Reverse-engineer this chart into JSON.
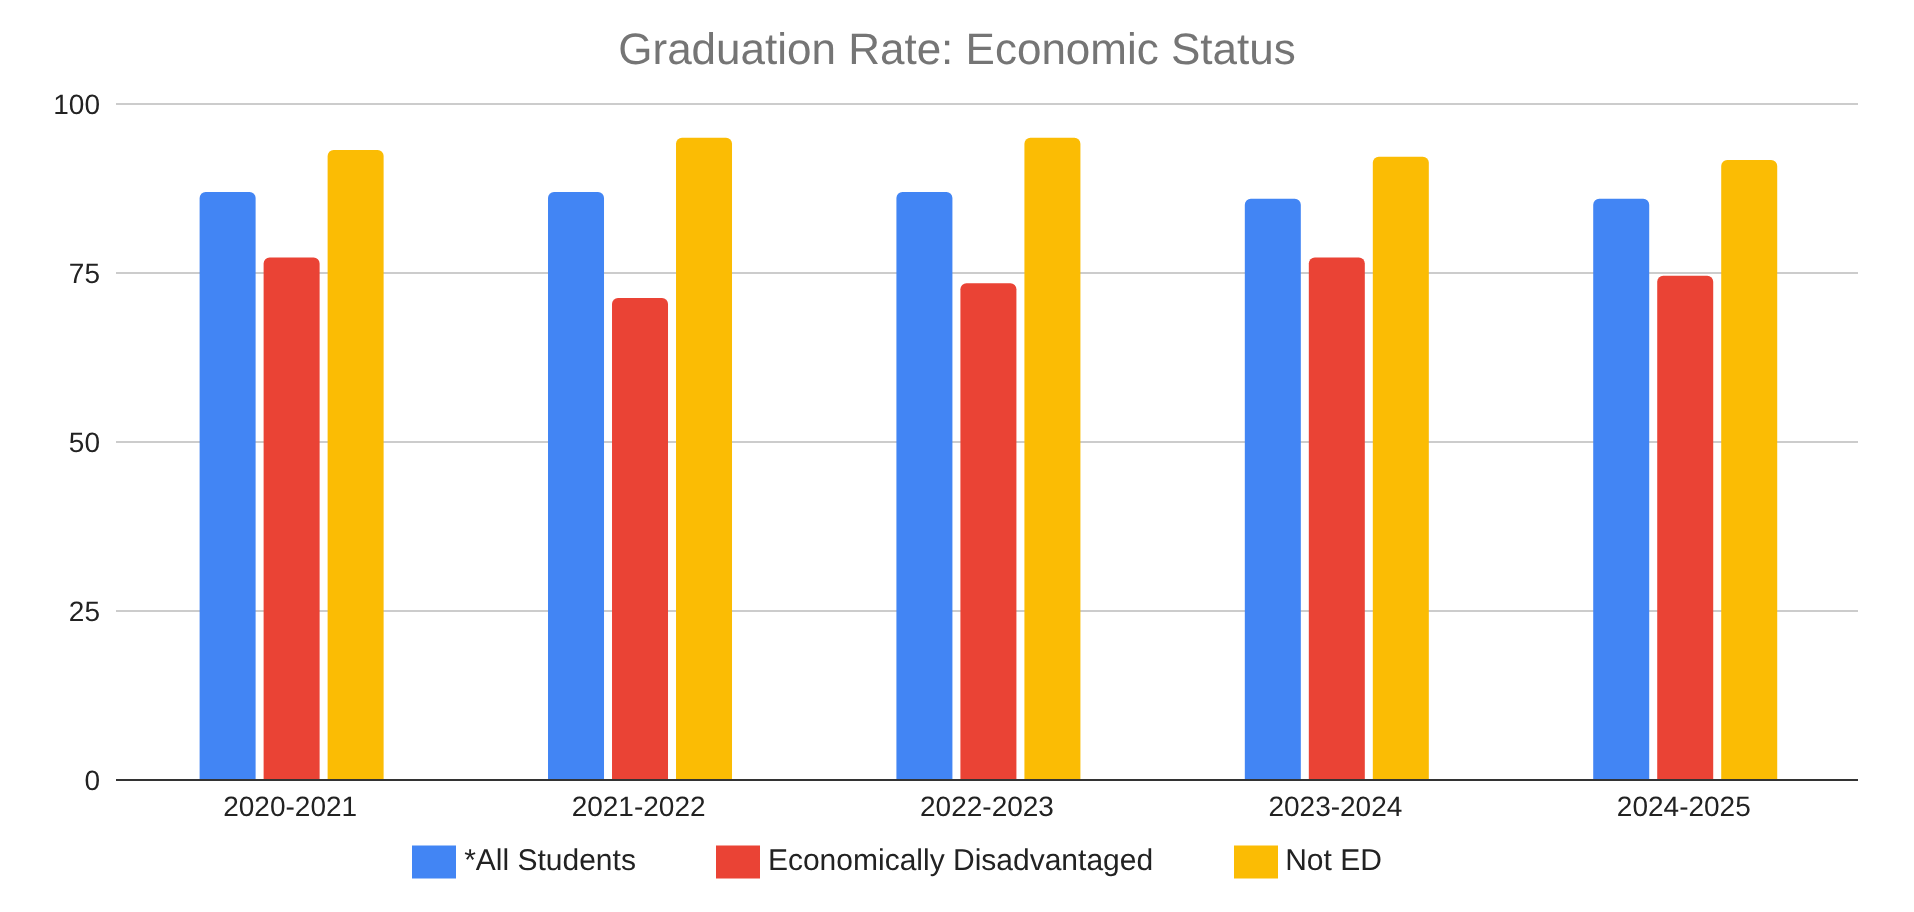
{
  "chart_data": {
    "type": "bar",
    "title": "Graduation Rate: Economic Status",
    "categories": [
      "2020-2021",
      "2021-2022",
      "2022-2023",
      "2023-2024",
      "2024-2025"
    ],
    "series": [
      {
        "name": "*All Students",
        "color": "#4285f4",
        "values": [
          87,
          87,
          87,
          86,
          86
        ]
      },
      {
        "name": "Economically Disadvantaged",
        "color": "#ea4335",
        "values": [
          77.3,
          71.3,
          73.5,
          77.3,
          74.6
        ]
      },
      {
        "name": "Not ED",
        "color": "#fbbc04",
        "values": [
          93.2,
          95,
          95,
          92.2,
          91.7
        ]
      }
    ],
    "ylim": [
      0,
      100
    ],
    "yticks": [
      0,
      25,
      50,
      75,
      100
    ],
    "grid": "y",
    "legend": "bottom"
  }
}
